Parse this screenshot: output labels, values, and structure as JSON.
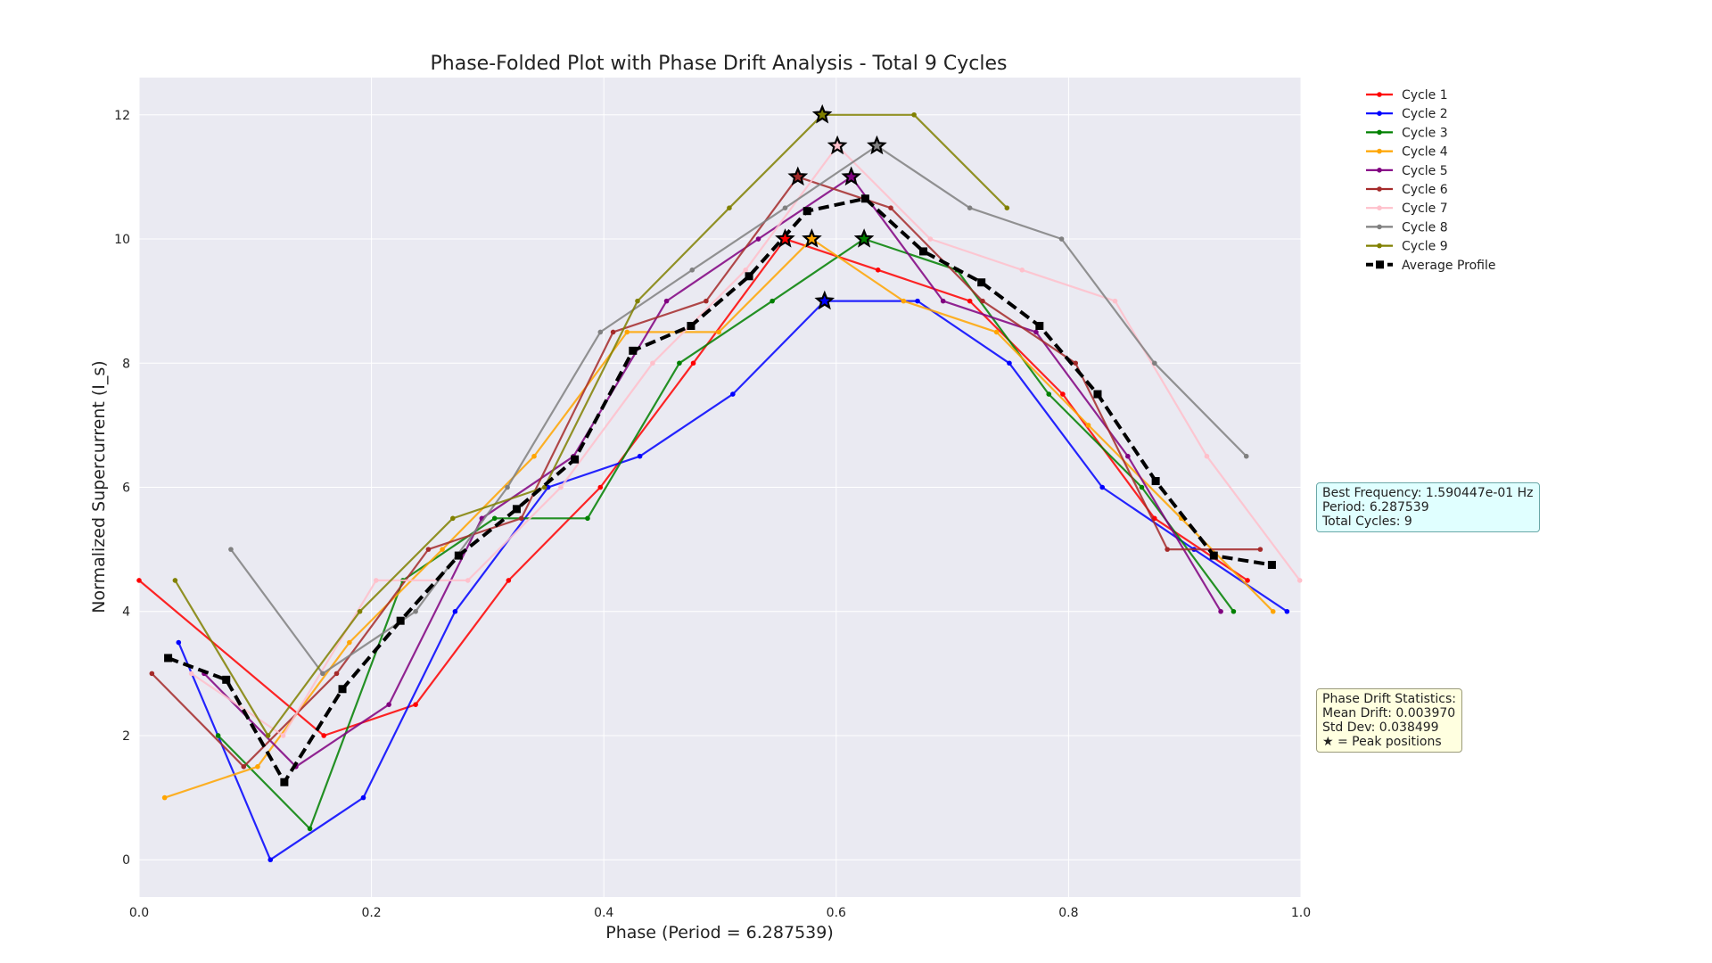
{
  "chart_data": {
    "type": "line",
    "title": "Phase-Folded Plot with Phase Drift Analysis - Total 9 Cycles",
    "xlabel": "Phase (Period = 6.287539)",
    "ylabel": "Normalized Supercurrent (I_s)",
    "xlim": [
      0.0,
      1.0
    ],
    "ylim": [
      -0.6,
      12.6
    ],
    "xticks": [
      0.0,
      0.2,
      0.4,
      0.6,
      0.8,
      1.0
    ],
    "xtick_labels": [
      "0.0",
      "0.2",
      "0.4",
      "0.6",
      "0.8",
      "1.0"
    ],
    "yticks": [
      0,
      2,
      4,
      6,
      8,
      10,
      12
    ],
    "ytick_labels": [
      "0",
      "2",
      "4",
      "6",
      "8",
      "10",
      "12"
    ],
    "grid": true,
    "legend_position": "top-right outside",
    "series": [
      {
        "name": "Cycle 1",
        "color": "#ff0000",
        "x": [
          0.0,
          0.159,
          0.238,
          0.318,
          0.397,
          0.477,
          0.556,
          0.636,
          0.715,
          0.795,
          0.874,
          0.954
        ],
        "y": [
          4.5,
          2.0,
          2.5,
          4.5,
          6.0,
          8.0,
          10.0,
          9.5,
          9.0,
          7.5,
          5.5,
          4.5
        ],
        "peak": [
          0.556,
          10.0
        ]
      },
      {
        "name": "Cycle 2",
        "color": "#0000ff",
        "x": [
          0.034,
          0.113,
          0.193,
          0.272,
          0.352,
          0.431,
          0.511,
          0.59,
          0.67,
          0.749,
          0.829,
          0.908,
          0.988
        ],
        "y": [
          3.5,
          0.0,
          1.0,
          4.0,
          6.0,
          6.5,
          7.5,
          9.0,
          9.0,
          8.0,
          6.0,
          5.0,
          4.0
        ],
        "peak": [
          0.59,
          9.0
        ]
      },
      {
        "name": "Cycle 3",
        "color": "#008000",
        "x": [
          0.068,
          0.147,
          0.227,
          0.306,
          0.386,
          0.465,
          0.545,
          0.624,
          0.704,
          0.783,
          0.863,
          0.942
        ],
        "y": [
          2.0,
          0.5,
          4.5,
          5.5,
          5.5,
          8.0,
          9.0,
          10.0,
          9.5,
          7.5,
          6.0,
          4.0
        ],
        "peak": [
          0.624,
          10.0
        ]
      },
      {
        "name": "Cycle 4",
        "color": "#ffa500",
        "x": [
          0.022,
          0.102,
          0.181,
          0.261,
          0.34,
          0.42,
          0.499,
          0.579,
          0.658,
          0.738,
          0.817,
          0.897,
          0.976
        ],
        "y": [
          1.0,
          1.5,
          3.5,
          5.0,
          6.5,
          8.5,
          8.5,
          10.0,
          9.0,
          8.5,
          7.0,
          5.5,
          4.0
        ],
        "peak": [
          0.579,
          10.0
        ]
      },
      {
        "name": "Cycle 5",
        "color": "#800080",
        "x": [
          0.056,
          0.135,
          0.215,
          0.295,
          0.374,
          0.454,
          0.533,
          0.613,
          0.692,
          0.772,
          0.851,
          0.931
        ],
        "y": [
          3.0,
          1.5,
          2.5,
          5.5,
          6.5,
          9.0,
          10.0,
          11.0,
          9.0,
          8.5,
          6.5,
          4.0
        ],
        "peak": [
          0.613,
          11.0
        ]
      },
      {
        "name": "Cycle 6",
        "color": "#a52a2a",
        "x": [
          0.011,
          0.09,
          0.17,
          0.249,
          0.329,
          0.408,
          0.488,
          0.567,
          0.647,
          0.726,
          0.806,
          0.885,
          0.965
        ],
        "y": [
          3.0,
          1.5,
          3.0,
          5.0,
          5.5,
          8.5,
          9.0,
          11.0,
          10.5,
          9.0,
          8.0,
          5.0,
          5.0
        ],
        "peak": [
          0.567,
          11.0
        ]
      },
      {
        "name": "Cycle 7",
        "color": "#ffc0cb",
        "x": [
          0.045,
          0.124,
          0.204,
          0.283,
          0.363,
          0.442,
          0.522,
          0.601,
          0.681,
          0.76,
          0.84,
          0.919,
          0.999
        ],
        "y": [
          3.0,
          2.0,
          4.5,
          4.5,
          6.0,
          8.0,
          9.5,
          11.5,
          10.0,
          9.5,
          9.0,
          6.5,
          4.5
        ],
        "peak": [
          0.601,
          11.5
        ]
      },
      {
        "name": "Cycle 8",
        "color": "#808080",
        "x": [
          0.079,
          0.158,
          0.238,
          0.317,
          0.397,
          0.476,
          0.556,
          0.635,
          0.715,
          0.794,
          0.874,
          0.953
        ],
        "y": [
          5.0,
          3.0,
          4.0,
          6.0,
          8.5,
          9.5,
          10.5,
          11.5,
          10.5,
          10.0,
          8.0,
          6.5
        ],
        "peak": [
          0.635,
          11.5
        ]
      },
      {
        "name": "Cycle 9",
        "color": "#808000",
        "x": [
          0.031,
          0.111,
          0.19,
          0.27,
          0.349,
          0.429,
          0.508,
          0.588,
          0.667,
          0.747
        ],
        "y": [
          4.5,
          2.0,
          4.0,
          5.5,
          6.0,
          9.0,
          10.5,
          12.0,
          12.0,
          10.5
        ],
        "peak": [
          0.588,
          12.0
        ]
      }
    ],
    "average_profile": {
      "name": "Average Profile",
      "color": "#000000",
      "x": [
        0.025,
        0.075,
        0.125,
        0.175,
        0.225,
        0.275,
        0.325,
        0.375,
        0.425,
        0.475,
        0.525,
        0.575,
        0.625,
        0.675,
        0.725,
        0.775,
        0.825,
        0.875,
        0.925,
        0.975
      ],
      "y": [
        3.25,
        2.9,
        1.25,
        2.75,
        3.85,
        4.9,
        5.65,
        6.45,
        8.2,
        8.6,
        9.4,
        10.45,
        10.65,
        9.8,
        9.3,
        8.6,
        7.5,
        6.1,
        4.9,
        4.75
      ]
    },
    "annotations": {
      "frequency_box": [
        "Best Frequency: 1.590447e-01 Hz",
        "Period: 6.287539",
        "Total Cycles: 9"
      ],
      "drift_box": [
        "Phase Drift Statistics:",
        "Mean Drift: 0.003970",
        "Std Dev: 0.038499",
        "★ = Peak positions"
      ]
    }
  }
}
